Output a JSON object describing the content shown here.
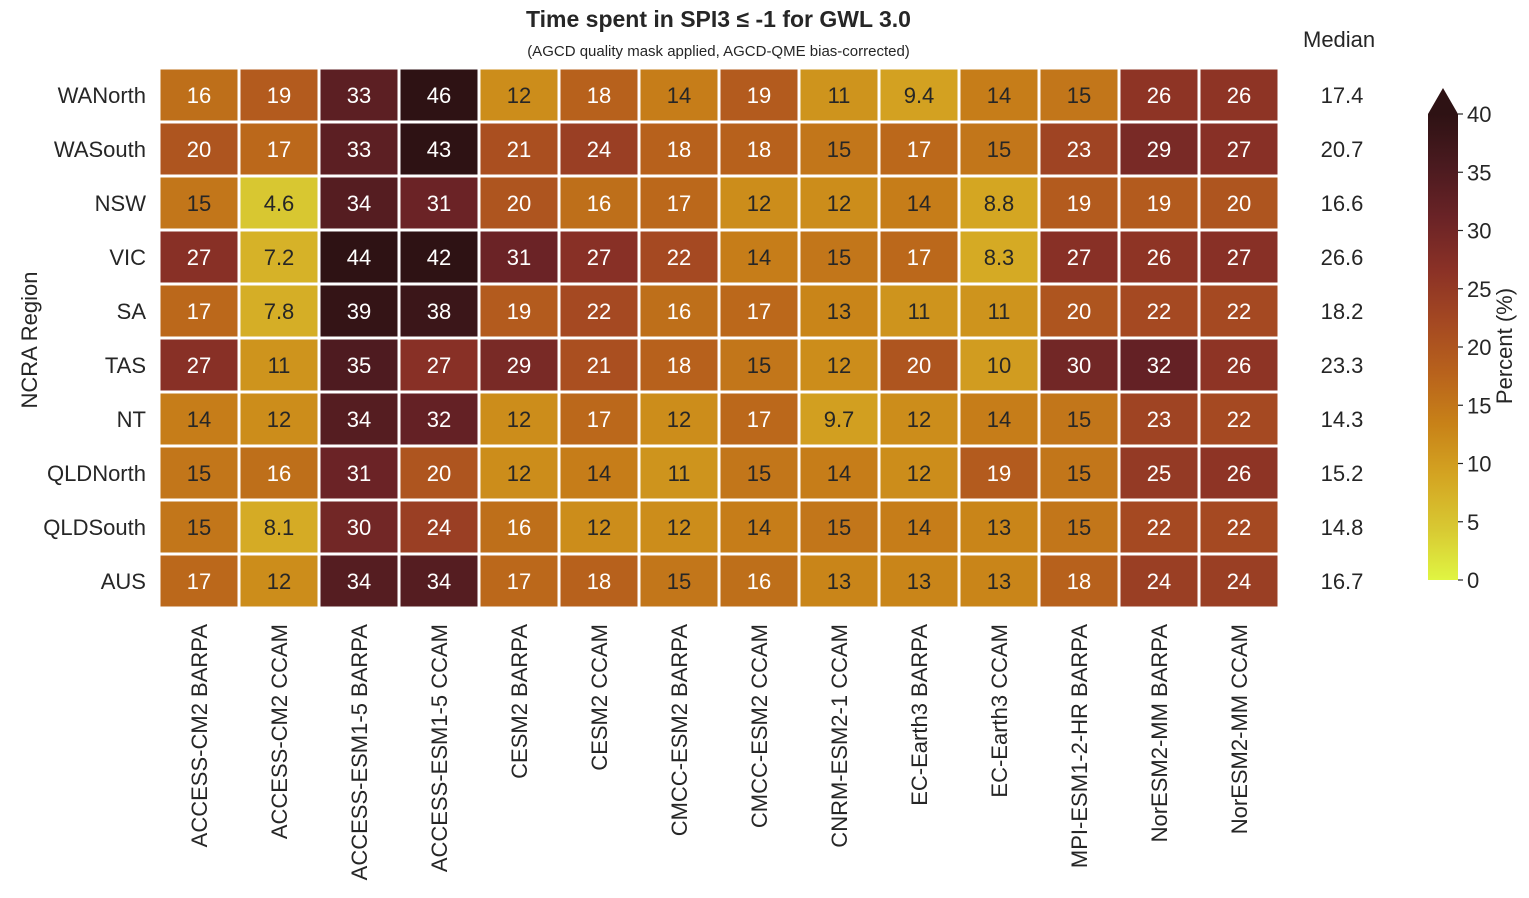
{
  "chart_data": {
    "type": "heatmap",
    "title": "Time spent in SPI3 ≤ -1 for GWL 3.0",
    "subtitle": "(AGCD quality mask applied, AGCD-QME bias-corrected)",
    "ylabel": "NCRA Region",
    "colorbar_label": "Percent (%)",
    "colorbar_range": [
      0,
      40
    ],
    "colorbar_ticks": [
      "0",
      "5",
      "10",
      "15",
      "20",
      "25",
      "30",
      "35",
      "40"
    ],
    "colorbar_extend": "max",
    "median_header": "Median",
    "columns": [
      "ACCESS-CM2 BARPA",
      "ACCESS-CM2 CCAM",
      "ACCESS-ESM1-5 BARPA",
      "ACCESS-ESM1-5 CCAM",
      "CESM2 BARPA",
      "CESM2 CCAM",
      "CMCC-ESM2 BARPA",
      "CMCC-ESM2 CCAM",
      "CNRM-ESM2-1 CCAM",
      "EC-Earth3 BARPA",
      "EC-Earth3 CCAM",
      "MPI-ESM1-2-HR BARPA",
      "NorESM2-MM BARPA",
      "NorESM2-MM CCAM"
    ],
    "rows": [
      "WANorth",
      "WASouth",
      "NSW",
      "VIC",
      "SA",
      "TAS",
      "NT",
      "QLDNorth",
      "QLDSouth",
      "AUS"
    ],
    "values": [
      [
        16,
        19,
        33,
        46,
        12,
        18,
        14,
        19,
        11,
        9.4,
        14,
        15,
        26,
        26
      ],
      [
        20,
        17,
        33,
        43,
        21,
        24,
        18,
        18,
        15,
        17,
        15,
        23,
        29,
        27
      ],
      [
        15,
        4.6,
        34,
        31,
        20,
        16,
        17,
        12,
        12,
        14,
        8.8,
        19,
        19,
        20
      ],
      [
        27,
        7.2,
        44,
        42,
        31,
        27,
        22,
        14,
        15,
        17,
        8.3,
        27,
        26,
        27
      ],
      [
        17,
        7.8,
        39,
        38,
        19,
        22,
        16,
        17,
        13,
        11,
        11,
        20,
        22,
        22
      ],
      [
        27,
        11,
        35,
        27,
        29,
        21,
        18,
        15,
        12,
        20,
        10,
        30,
        32,
        26
      ],
      [
        14,
        12,
        34,
        32,
        12,
        17,
        12,
        17,
        9.7,
        12,
        14,
        15,
        23,
        22
      ],
      [
        15,
        16,
        31,
        20,
        12,
        14,
        11,
        15,
        14,
        12,
        19,
        15,
        25,
        26
      ],
      [
        15,
        8.1,
        30,
        24,
        16,
        12,
        12,
        14,
        15,
        14,
        13,
        15,
        22,
        22
      ],
      [
        17,
        12,
        34,
        34,
        17,
        18,
        15,
        16,
        13,
        13,
        13,
        18,
        24,
        24
      ]
    ],
    "medians": [
      "17.4",
      "20.7",
      "16.6",
      "26.6",
      "18.2",
      "23.3",
      "14.3",
      "15.2",
      "14.8",
      "16.7"
    ]
  },
  "colors": {
    "colormap_stops": [
      "#e0f542",
      "#d8c832",
      "#d4a522",
      "#c88218",
      "#b8621c",
      "#a44822",
      "#8a3126",
      "#6a2326",
      "#4a1a1f",
      "#2e1214"
    ],
    "cell_border": "#ffffff",
    "light_text": "#ffffff",
    "dark_text": "#262626"
  }
}
